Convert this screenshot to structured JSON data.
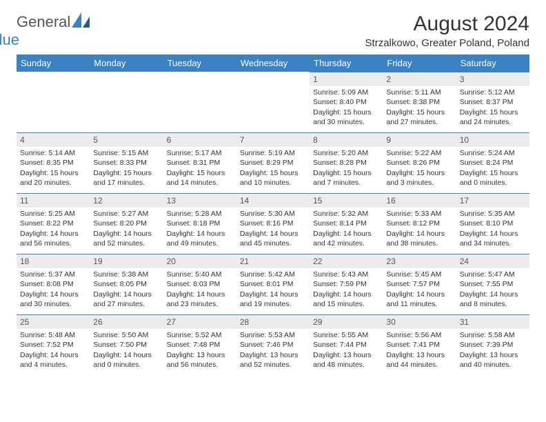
{
  "logo": {
    "text1": "General",
    "text2": "Blue"
  },
  "title": "August 2024",
  "location": "Strzalkowo, Greater Poland, Poland",
  "colors": {
    "header_bg": "#3b82c4",
    "header_fg": "#ffffff",
    "daynum_bg": "#ececec",
    "daynum_border": "#3b82c4",
    "page_bg": "#ffffff",
    "text": "#333333"
  },
  "daynames": [
    "Sunday",
    "Monday",
    "Tuesday",
    "Wednesday",
    "Thursday",
    "Friday",
    "Saturday"
  ],
  "weeks": [
    [
      {
        "n": "",
        "sr": "",
        "ss": "",
        "dl": ""
      },
      {
        "n": "",
        "sr": "",
        "ss": "",
        "dl": ""
      },
      {
        "n": "",
        "sr": "",
        "ss": "",
        "dl": ""
      },
      {
        "n": "",
        "sr": "",
        "ss": "",
        "dl": ""
      },
      {
        "n": "1",
        "sr": "Sunrise: 5:09 AM",
        "ss": "Sunset: 8:40 PM",
        "dl": "Daylight: 15 hours and 30 minutes."
      },
      {
        "n": "2",
        "sr": "Sunrise: 5:11 AM",
        "ss": "Sunset: 8:38 PM",
        "dl": "Daylight: 15 hours and 27 minutes."
      },
      {
        "n": "3",
        "sr": "Sunrise: 5:12 AM",
        "ss": "Sunset: 8:37 PM",
        "dl": "Daylight: 15 hours and 24 minutes."
      }
    ],
    [
      {
        "n": "4",
        "sr": "Sunrise: 5:14 AM",
        "ss": "Sunset: 8:35 PM",
        "dl": "Daylight: 15 hours and 20 minutes."
      },
      {
        "n": "5",
        "sr": "Sunrise: 5:15 AM",
        "ss": "Sunset: 8:33 PM",
        "dl": "Daylight: 15 hours and 17 minutes."
      },
      {
        "n": "6",
        "sr": "Sunrise: 5:17 AM",
        "ss": "Sunset: 8:31 PM",
        "dl": "Daylight: 15 hours and 14 minutes."
      },
      {
        "n": "7",
        "sr": "Sunrise: 5:19 AM",
        "ss": "Sunset: 8:29 PM",
        "dl": "Daylight: 15 hours and 10 minutes."
      },
      {
        "n": "8",
        "sr": "Sunrise: 5:20 AM",
        "ss": "Sunset: 8:28 PM",
        "dl": "Daylight: 15 hours and 7 minutes."
      },
      {
        "n": "9",
        "sr": "Sunrise: 5:22 AM",
        "ss": "Sunset: 8:26 PM",
        "dl": "Daylight: 15 hours and 3 minutes."
      },
      {
        "n": "10",
        "sr": "Sunrise: 5:24 AM",
        "ss": "Sunset: 8:24 PM",
        "dl": "Daylight: 15 hours and 0 minutes."
      }
    ],
    [
      {
        "n": "11",
        "sr": "Sunrise: 5:25 AM",
        "ss": "Sunset: 8:22 PM",
        "dl": "Daylight: 14 hours and 56 minutes."
      },
      {
        "n": "12",
        "sr": "Sunrise: 5:27 AM",
        "ss": "Sunset: 8:20 PM",
        "dl": "Daylight: 14 hours and 52 minutes."
      },
      {
        "n": "13",
        "sr": "Sunrise: 5:28 AM",
        "ss": "Sunset: 8:18 PM",
        "dl": "Daylight: 14 hours and 49 minutes."
      },
      {
        "n": "14",
        "sr": "Sunrise: 5:30 AM",
        "ss": "Sunset: 8:16 PM",
        "dl": "Daylight: 14 hours and 45 minutes."
      },
      {
        "n": "15",
        "sr": "Sunrise: 5:32 AM",
        "ss": "Sunset: 8:14 PM",
        "dl": "Daylight: 14 hours and 42 minutes."
      },
      {
        "n": "16",
        "sr": "Sunrise: 5:33 AM",
        "ss": "Sunset: 8:12 PM",
        "dl": "Daylight: 14 hours and 38 minutes."
      },
      {
        "n": "17",
        "sr": "Sunrise: 5:35 AM",
        "ss": "Sunset: 8:10 PM",
        "dl": "Daylight: 14 hours and 34 minutes."
      }
    ],
    [
      {
        "n": "18",
        "sr": "Sunrise: 5:37 AM",
        "ss": "Sunset: 8:08 PM",
        "dl": "Daylight: 14 hours and 30 minutes."
      },
      {
        "n": "19",
        "sr": "Sunrise: 5:38 AM",
        "ss": "Sunset: 8:05 PM",
        "dl": "Daylight: 14 hours and 27 minutes."
      },
      {
        "n": "20",
        "sr": "Sunrise: 5:40 AM",
        "ss": "Sunset: 8:03 PM",
        "dl": "Daylight: 14 hours and 23 minutes."
      },
      {
        "n": "21",
        "sr": "Sunrise: 5:42 AM",
        "ss": "Sunset: 8:01 PM",
        "dl": "Daylight: 14 hours and 19 minutes."
      },
      {
        "n": "22",
        "sr": "Sunrise: 5:43 AM",
        "ss": "Sunset: 7:59 PM",
        "dl": "Daylight: 14 hours and 15 minutes."
      },
      {
        "n": "23",
        "sr": "Sunrise: 5:45 AM",
        "ss": "Sunset: 7:57 PM",
        "dl": "Daylight: 14 hours and 11 minutes."
      },
      {
        "n": "24",
        "sr": "Sunrise: 5:47 AM",
        "ss": "Sunset: 7:55 PM",
        "dl": "Daylight: 14 hours and 8 minutes."
      }
    ],
    [
      {
        "n": "25",
        "sr": "Sunrise: 5:48 AM",
        "ss": "Sunset: 7:52 PM",
        "dl": "Daylight: 14 hours and 4 minutes."
      },
      {
        "n": "26",
        "sr": "Sunrise: 5:50 AM",
        "ss": "Sunset: 7:50 PM",
        "dl": "Daylight: 14 hours and 0 minutes."
      },
      {
        "n": "27",
        "sr": "Sunrise: 5:52 AM",
        "ss": "Sunset: 7:48 PM",
        "dl": "Daylight: 13 hours and 56 minutes."
      },
      {
        "n": "28",
        "sr": "Sunrise: 5:53 AM",
        "ss": "Sunset: 7:46 PM",
        "dl": "Daylight: 13 hours and 52 minutes."
      },
      {
        "n": "29",
        "sr": "Sunrise: 5:55 AM",
        "ss": "Sunset: 7:44 PM",
        "dl": "Daylight: 13 hours and 48 minutes."
      },
      {
        "n": "30",
        "sr": "Sunrise: 5:56 AM",
        "ss": "Sunset: 7:41 PM",
        "dl": "Daylight: 13 hours and 44 minutes."
      },
      {
        "n": "31",
        "sr": "Sunrise: 5:58 AM",
        "ss": "Sunset: 7:39 PM",
        "dl": "Daylight: 13 hours and 40 minutes."
      }
    ]
  ]
}
